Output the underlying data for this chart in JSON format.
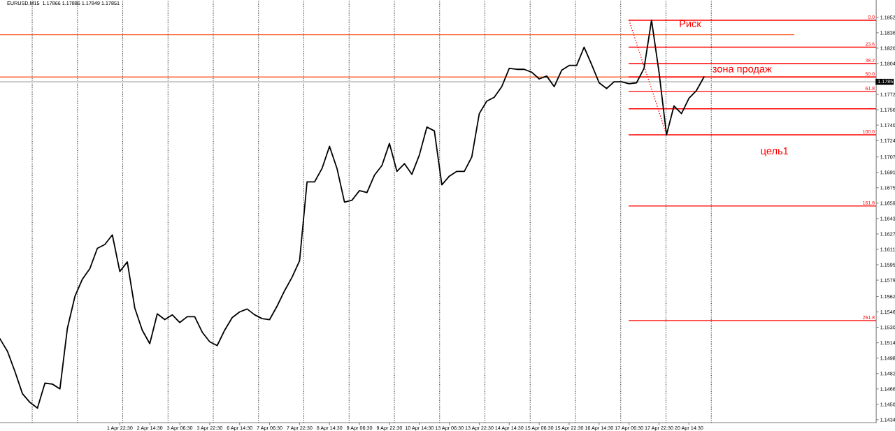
{
  "chart_data": {
    "type": "line",
    "title": "EURUSD,M15  1.17866 1.17886 1.17849 1.17851",
    "categories": [
      null,
      null,
      null,
      null,
      null,
      null,
      null,
      null,
      null,
      null,
      null,
      null,
      null,
      null,
      null,
      null,
      "1 Apr 22:30",
      null,
      null,
      null,
      "2 Apr 14:30",
      null,
      null,
      null,
      "3 Apr 06:30",
      null,
      null,
      null,
      "3 Apr 22:30",
      null,
      null,
      null,
      "6 Apr 14:30",
      null,
      null,
      null,
      "7 Apr 06:30",
      null,
      null,
      null,
      "7 Apr 22:30",
      null,
      null,
      null,
      "8 Apr 14:30",
      null,
      null,
      null,
      "9 Apr 06:30",
      null,
      null,
      null,
      "9 Apr 22:30",
      null,
      null,
      null,
      "10 Apr 14:30",
      null,
      null,
      null,
      "13 Apr 06:30",
      null,
      null,
      null,
      "13 Apr 22:30",
      null,
      null,
      null,
      "14 Apr 14:30",
      null,
      null,
      null,
      "15 Apr 06:30",
      null,
      null,
      null,
      "15 Apr 22:30",
      null,
      null,
      null,
      "16 Apr 14:30",
      null,
      null,
      null,
      "17 Apr 06:30",
      null,
      null,
      null,
      "17 Apr 22:30",
      null,
      null,
      null,
      "20 Apr 14:30",
      null,
      null,
      null,
      null,
      null,
      null,
      null,
      null,
      null,
      null,
      null,
      null,
      null,
      null,
      null,
      null,
      null,
      null,
      null,
      null,
      null,
      null,
      null,
      null,
      null
    ],
    "ylim": [
      1.1431,
      1.187
    ],
    "yticks": [
      1.1434,
      {
        "value": 1.145,
        "label": "1.1450"
      },
      1.1466,
      1.1482,
      1.1498,
      1.1514,
      {
        "value": 1.153,
        "label": "1.1530"
      },
      1.1546,
      1.1562,
      1.1579,
      1.1595,
      1.1611,
      1.1627,
      1.1643,
      1.1659,
      1.1675,
      1.1691,
      1.1707,
      1.1724,
      {
        "value": 1.174,
        "label": "1.1740"
      },
      1.1756,
      1.1772,
      1.1804,
      {
        "value": 1.182,
        "label": "1.1820"
      },
      1.1836,
      1.1852
    ],
    "series": [
      {
        "color": "#000000",
        "values": [
          1.1518,
          1.1505,
          1.1484,
          1.1461,
          1.1452,
          1.1446,
          1.1472,
          1.1471,
          1.1466,
          1.1529,
          1.1562,
          1.158,
          1.1591,
          1.1612,
          1.1616,
          1.1626,
          1.1588,
          1.1598,
          1.155,
          1.1527,
          1.1513,
          1.1544,
          1.1538,
          1.1543,
          1.1535,
          1.1541,
          1.1541,
          1.1525,
          1.1515,
          1.1511,
          1.1527,
          1.154,
          1.1546,
          1.1549,
          1.1543,
          1.1539,
          1.1538,
          1.1552,
          1.1568,
          1.1582,
          1.1599,
          1.1681,
          1.1681,
          1.1695,
          1.1718,
          1.1695,
          1.166,
          1.1662,
          1.1672,
          1.167,
          1.1688,
          1.1698,
          1.1721,
          1.1692,
          1.17,
          1.1689,
          1.1709,
          1.1738,
          1.1734,
          1.1678,
          1.1687,
          1.1692,
          1.1692,
          1.1707,
          1.1752,
          1.1765,
          1.1769,
          1.178,
          1.1799,
          1.1798,
          1.1798,
          1.1795,
          1.1788,
          1.1791,
          1.178,
          1.1797,
          1.1802,
          1.1802,
          1.1821,
          1.1803,
          1.1784,
          1.1778,
          1.1785,
          1.1785,
          1.1783,
          1.1784,
          1.1799,
          1.1849,
          1.1795,
          1.173,
          1.176,
          1.1752,
          1.1768,
          1.1776,
          1.179,
          null,
          null,
          null,
          null,
          null,
          null,
          null,
          null,
          null,
          null,
          null,
          null,
          null,
          null,
          null,
          null,
          null,
          null,
          null,
          null,
          null,
          null,
          null
        ]
      },
      {
        "name": "0.0",
        "color": "#ff0000",
        "values": [
          null,
          null,
          null,
          null,
          null,
          null,
          null,
          null,
          null,
          null,
          null,
          null,
          null,
          null,
          null,
          null,
          null,
          null,
          null,
          null,
          null,
          null,
          null,
          null,
          null,
          null,
          null,
          null,
          null,
          null,
          null,
          null,
          null,
          null,
          null,
          null,
          null,
          null,
          null,
          null,
          null,
          null,
          null,
          null,
          null,
          null,
          null,
          null,
          null,
          null,
          null,
          null,
          null,
          null,
          null,
          null,
          null,
          null,
          null,
          null,
          null,
          null,
          null,
          null,
          null,
          null,
          null,
          null,
          null,
          null,
          null,
          null,
          null,
          null,
          null,
          null,
          null,
          null,
          null,
          null,
          null,
          null,
          null,
          null,
          1.1849,
          1.1849,
          1.1849,
          1.1849,
          1.1849,
          1.1849,
          1.1849,
          1.1849,
          1.1849,
          1.1849,
          1.1849,
          1.1849,
          1.1849,
          1.1849,
          1.1849,
          1.1849,
          1.1849,
          1.1849,
          1.1849,
          1.1849,
          1.1849,
          1.1849,
          1.1849,
          1.1849,
          1.1849,
          1.1849,
          1.1849,
          1.1849,
          1.1849,
          1.1849,
          1.1849,
          1.1849,
          1.1849,
          1.1849
        ]
      },
      {
        "name": "23.6",
        "color": "#ff0000",
        "values": [
          null,
          null,
          null,
          null,
          null,
          null,
          null,
          null,
          null,
          null,
          null,
          null,
          null,
          null,
          null,
          null,
          null,
          null,
          null,
          null,
          null,
          null,
          null,
          null,
          null,
          null,
          null,
          null,
          null,
          null,
          null,
          null,
          null,
          null,
          null,
          null,
          null,
          null,
          null,
          null,
          null,
          null,
          null,
          null,
          null,
          null,
          null,
          null,
          null,
          null,
          null,
          null,
          null,
          null,
          null,
          null,
          null,
          null,
          null,
          null,
          null,
          null,
          null,
          null,
          null,
          null,
          null,
          null,
          null,
          null,
          null,
          null,
          null,
          null,
          null,
          null,
          null,
          null,
          null,
          null,
          null,
          null,
          null,
          null,
          1.1821,
          1.1821,
          1.1821,
          1.1821,
          1.1821,
          1.1821,
          1.1821,
          1.1821,
          1.1821,
          1.1821,
          1.1821,
          1.1821,
          1.1821,
          1.1821,
          1.1821,
          1.1821,
          1.1821,
          1.1821,
          1.1821,
          1.1821,
          1.1821,
          1.1821,
          1.1821,
          1.1821,
          1.1821,
          1.1821,
          1.1821,
          1.1821,
          1.1821,
          1.1821,
          1.1821,
          1.1821,
          1.1821,
          1.1821
        ]
      },
      {
        "name": "38.2",
        "color": "#ff0000",
        "values": [
          null,
          null,
          null,
          null,
          null,
          null,
          null,
          null,
          null,
          null,
          null,
          null,
          null,
          null,
          null,
          null,
          null,
          null,
          null,
          null,
          null,
          null,
          null,
          null,
          null,
          null,
          null,
          null,
          null,
          null,
          null,
          null,
          null,
          null,
          null,
          null,
          null,
          null,
          null,
          null,
          null,
          null,
          null,
          null,
          null,
          null,
          null,
          null,
          null,
          null,
          null,
          null,
          null,
          null,
          null,
          null,
          null,
          null,
          null,
          null,
          null,
          null,
          null,
          null,
          null,
          null,
          null,
          null,
          null,
          null,
          null,
          null,
          null,
          null,
          null,
          null,
          null,
          null,
          null,
          null,
          null,
          null,
          null,
          null,
          1.1804,
          1.1804,
          1.1804,
          1.1804,
          1.1804,
          1.1804,
          1.1804,
          1.1804,
          1.1804,
          1.1804,
          1.1804,
          1.1804,
          1.1804,
          1.1804,
          1.1804,
          1.1804,
          1.1804,
          1.1804,
          1.1804,
          1.1804,
          1.1804,
          1.1804,
          1.1804,
          1.1804,
          1.1804,
          1.1804,
          1.1804,
          1.1804,
          1.1804,
          1.1804,
          1.1804,
          1.1804,
          1.1804,
          1.1804
        ]
      },
      {
        "name": "50.0",
        "color": "#ff0000",
        "values": [
          null,
          null,
          null,
          null,
          null,
          null,
          null,
          null,
          null,
          null,
          null,
          null,
          null,
          null,
          null,
          null,
          null,
          null,
          null,
          null,
          null,
          null,
          null,
          null,
          null,
          null,
          null,
          null,
          null,
          null,
          null,
          null,
          null,
          null,
          null,
          null,
          null,
          null,
          null,
          null,
          null,
          null,
          null,
          null,
          null,
          null,
          null,
          null,
          null,
          null,
          null,
          null,
          null,
          null,
          null,
          null,
          null,
          null,
          null,
          null,
          null,
          null,
          null,
          null,
          null,
          null,
          null,
          null,
          null,
          null,
          null,
          null,
          null,
          null,
          null,
          null,
          null,
          null,
          null,
          null,
          null,
          null,
          null,
          null,
          1.179,
          1.179,
          1.179,
          1.179,
          1.179,
          1.179,
          1.179,
          1.179,
          1.179,
          1.179,
          1.179,
          1.179,
          1.179,
          1.179,
          1.179,
          1.179,
          1.179,
          1.179,
          1.179,
          1.179,
          1.179,
          1.179,
          1.179,
          1.179,
          1.179,
          1.179,
          1.179,
          1.179,
          1.179,
          1.179,
          1.179,
          1.179,
          1.179,
          1.179
        ]
      },
      {
        "name": "61.8",
        "color": "#ff0000",
        "values": [
          null,
          null,
          null,
          null,
          null,
          null,
          null,
          null,
          null,
          null,
          null,
          null,
          null,
          null,
          null,
          null,
          null,
          null,
          null,
          null,
          null,
          null,
          null,
          null,
          null,
          null,
          null,
          null,
          null,
          null,
          null,
          null,
          null,
          null,
          null,
          null,
          null,
          null,
          null,
          null,
          null,
          null,
          null,
          null,
          null,
          null,
          null,
          null,
          null,
          null,
          null,
          null,
          null,
          null,
          null,
          null,
          null,
          null,
          null,
          null,
          null,
          null,
          null,
          null,
          null,
          null,
          null,
          null,
          null,
          null,
          null,
          null,
          null,
          null,
          null,
          null,
          null,
          null,
          null,
          null,
          null,
          null,
          null,
          null,
          1.1775,
          1.1775,
          1.1775,
          1.1775,
          1.1775,
          1.1775,
          1.1775,
          1.1775,
          1.1775,
          1.1775,
          1.1775,
          1.1775,
          1.1775,
          1.1775,
          1.1775,
          1.1775,
          1.1775,
          1.1775,
          1.1775,
          1.1775,
          1.1775,
          1.1775,
          1.1775,
          1.1775,
          1.1775,
          1.1775,
          1.1775,
          1.1775,
          1.1775,
          1.1775,
          1.1775,
          1.1775,
          1.1775,
          1.1775
        ]
      },
      {
        "color": "#ff0000",
        "values": [
          null,
          null,
          null,
          null,
          null,
          null,
          null,
          null,
          null,
          null,
          null,
          null,
          null,
          null,
          null,
          null,
          null,
          null,
          null,
          null,
          null,
          null,
          null,
          null,
          null,
          null,
          null,
          null,
          null,
          null,
          null,
          null,
          null,
          null,
          null,
          null,
          null,
          null,
          null,
          null,
          null,
          null,
          null,
          null,
          null,
          null,
          null,
          null,
          null,
          null,
          null,
          null,
          null,
          null,
          null,
          null,
          null,
          null,
          null,
          null,
          null,
          null,
          null,
          null,
          null,
          null,
          null,
          null,
          null,
          null,
          null,
          null,
          null,
          null,
          null,
          null,
          null,
          null,
          null,
          null,
          null,
          null,
          null,
          null,
          1.1757,
          1.1757,
          1.1757,
          1.1757,
          1.1757,
          1.1757,
          1.1757,
          1.1757,
          1.1757,
          1.1757,
          1.1757,
          1.1757,
          1.1757,
          1.1757,
          1.1757,
          1.1757,
          1.1757,
          1.1757,
          1.1757,
          1.1757,
          1.1757,
          1.1757,
          1.1757,
          1.1757,
          1.1757,
          1.1757,
          1.1757,
          1.1757,
          1.1757,
          1.1757,
          1.1757,
          1.1757,
          1.1757,
          1.1757
        ]
      },
      {
        "name": "100.0",
        "color": "#ff0000",
        "values": [
          null,
          null,
          null,
          null,
          null,
          null,
          null,
          null,
          null,
          null,
          null,
          null,
          null,
          null,
          null,
          null,
          null,
          null,
          null,
          null,
          null,
          null,
          null,
          null,
          null,
          null,
          null,
          null,
          null,
          null,
          null,
          null,
          null,
          null,
          null,
          null,
          null,
          null,
          null,
          null,
          null,
          null,
          null,
          null,
          null,
          null,
          null,
          null,
          null,
          null,
          null,
          null,
          null,
          null,
          null,
          null,
          null,
          null,
          null,
          null,
          null,
          null,
          null,
          null,
          null,
          null,
          null,
          null,
          null,
          null,
          null,
          null,
          null,
          null,
          null,
          null,
          null,
          null,
          null,
          null,
          null,
          null,
          null,
          null,
          1.173,
          1.173,
          1.173,
          1.173,
          1.173,
          1.173,
          1.173,
          1.173,
          1.173,
          1.173,
          1.173,
          1.173,
          1.173,
          1.173,
          1.173,
          1.173,
          1.173,
          1.173,
          1.173,
          1.173,
          1.173,
          1.173,
          1.173,
          1.173,
          1.173,
          1.173,
          1.173,
          1.173,
          1.173,
          1.173,
          1.173,
          1.173,
          1.173,
          1.173
        ]
      },
      {
        "name": "161.8",
        "color": "#ff0000",
        "values": [
          null,
          null,
          null,
          null,
          null,
          null,
          null,
          null,
          null,
          null,
          null,
          null,
          null,
          null,
          null,
          null,
          null,
          null,
          null,
          null,
          null,
          null,
          null,
          null,
          null,
          null,
          null,
          null,
          null,
          null,
          null,
          null,
          null,
          null,
          null,
          null,
          null,
          null,
          null,
          null,
          null,
          null,
          null,
          null,
          null,
          null,
          null,
          null,
          null,
          null,
          null,
          null,
          null,
          null,
          null,
          null,
          null,
          null,
          null,
          null,
          null,
          null,
          null,
          null,
          null,
          null,
          null,
          null,
          null,
          null,
          null,
          null,
          null,
          null,
          null,
          null,
          null,
          null,
          null,
          null,
          null,
          null,
          null,
          null,
          1.1656,
          1.1656,
          1.1656,
          1.1656,
          1.1656,
          1.1656,
          1.1656,
          1.1656,
          1.1656,
          1.1656,
          1.1656,
          1.1656,
          1.1656,
          1.1656,
          1.1656,
          1.1656,
          1.1656,
          1.1656,
          1.1656,
          1.1656,
          1.1656,
          1.1656,
          1.1656,
          1.1656,
          1.1656,
          1.1656,
          1.1656,
          1.1656,
          1.1656,
          1.1656,
          1.1656,
          1.1656,
          1.1656,
          1.1656
        ]
      },
      {
        "name": "261.8",
        "color": "#ff0000",
        "values": [
          null,
          null,
          null,
          null,
          null,
          null,
          null,
          null,
          null,
          null,
          null,
          null,
          null,
          null,
          null,
          null,
          null,
          null,
          null,
          null,
          null,
          null,
          null,
          null,
          null,
          null,
          null,
          null,
          null,
          null,
          null,
          null,
          null,
          null,
          null,
          null,
          null,
          null,
          null,
          null,
          null,
          null,
          null,
          null,
          null,
          null,
          null,
          null,
          null,
          null,
          null,
          null,
          null,
          null,
          null,
          null,
          null,
          null,
          null,
          null,
          null,
          null,
          null,
          null,
          null,
          null,
          null,
          null,
          null,
          null,
          null,
          null,
          null,
          null,
          null,
          null,
          null,
          null,
          null,
          null,
          null,
          null,
          null,
          null,
          1.1537,
          1.1537,
          1.1537,
          1.1537,
          1.1537,
          1.1537,
          1.1537,
          1.1537,
          1.1537,
          1.1537,
          1.1537,
          1.1537,
          1.1537,
          1.1537,
          1.1537,
          1.1537,
          1.1537,
          1.1537,
          1.1537,
          1.1537,
          1.1537,
          1.1537,
          1.1537,
          1.1537,
          1.1537,
          1.1537,
          1.1537,
          1.1537,
          1.1537,
          1.1537,
          1.1537,
          1.1537,
          1.1537,
          1.1537
        ]
      },
      {
        "color": "#ff0000",
        "line_style": "dotted",
        "values": [
          null,
          null,
          null,
          null,
          null,
          null,
          null,
          null,
          null,
          null,
          null,
          null,
          null,
          null,
          null,
          null,
          null,
          null,
          null,
          null,
          null,
          null,
          null,
          null,
          null,
          null,
          null,
          null,
          null,
          null,
          null,
          null,
          null,
          null,
          null,
          null,
          null,
          null,
          null,
          null,
          null,
          null,
          null,
          null,
          null,
          null,
          null,
          null,
          null,
          null,
          null,
          null,
          null,
          null,
          null,
          null,
          null,
          null,
          null,
          null,
          null,
          null,
          null,
          null,
          null,
          null,
          null,
          null,
          null,
          null,
          null,
          null,
          null,
          null,
          null,
          null,
          null,
          null,
          null,
          null,
          null,
          null,
          null,
          null,
          1.1849,
          1.1825,
          1.1801,
          1.1778,
          1.1754,
          1.173,
          null,
          null,
          null,
          null,
          null,
          null,
          null,
          null,
          null,
          null,
          null,
          null,
          null,
          null,
          null,
          null,
          null,
          null,
          null,
          null,
          null,
          null,
          null,
          null,
          null,
          null,
          null,
          null
        ]
      },
      {
        "color": "#ff6633",
        "values": [
          1.1834,
          1.1834,
          1.1834,
          1.1834,
          1.1834,
          1.1834,
          1.1834,
          1.1834,
          1.1834,
          1.1834,
          1.1834,
          1.1834,
          1.1834,
          1.1834,
          1.1834,
          1.1834,
          1.1834,
          1.1834,
          1.1834,
          1.1834,
          1.1834,
          1.1834,
          1.1834,
          1.1834,
          1.1834,
          1.1834,
          1.1834,
          1.1834,
          1.1834,
          1.1834,
          1.1834,
          1.1834,
          1.1834,
          1.1834,
          1.1834,
          1.1834,
          1.1834,
          1.1834,
          1.1834,
          1.1834,
          1.1834,
          1.1834,
          1.1834,
          1.1834,
          1.1834,
          1.1834,
          1.1834,
          1.1834,
          1.1834,
          1.1834,
          1.1834,
          1.1834,
          1.1834,
          1.1834,
          1.1834,
          1.1834,
          1.1834,
          1.1834,
          1.1834,
          1.1834,
          1.1834,
          1.1834,
          1.1834,
          1.1834,
          1.1834,
          1.1834,
          1.1834,
          1.1834,
          1.1834,
          1.1834,
          1.1834,
          1.1834,
          1.1834,
          1.1834,
          1.1834,
          1.1834,
          1.1834,
          1.1834,
          1.1834,
          1.1834,
          1.1834,
          1.1834,
          1.1834,
          1.1834,
          1.1834,
          1.1834,
          1.1834,
          1.1834,
          1.1834,
          1.1834,
          1.1834,
          1.1834,
          1.1834,
          1.1834,
          1.1834,
          1.1834,
          1.1834,
          1.1834,
          1.1834,
          1.1834,
          1.1834,
          1.1834,
          1.1834,
          1.1834,
          1.1834,
          1.1834,
          1.1834,
          null,
          null,
          null,
          null,
          null,
          null,
          null,
          null,
          null,
          null,
          null
        ]
      }
    ],
    "ref_lines": [
      {
        "axis": "y",
        "value": 1.179,
        "color": "#ff6633"
      },
      {
        "axis": "y",
        "value": 1.1785,
        "label": "1.1785",
        "color": "#c0c0c0"
      }
    ],
    "annotations": [
      "Риск",
      "зона продаж",
      "цель1"
    ]
  }
}
